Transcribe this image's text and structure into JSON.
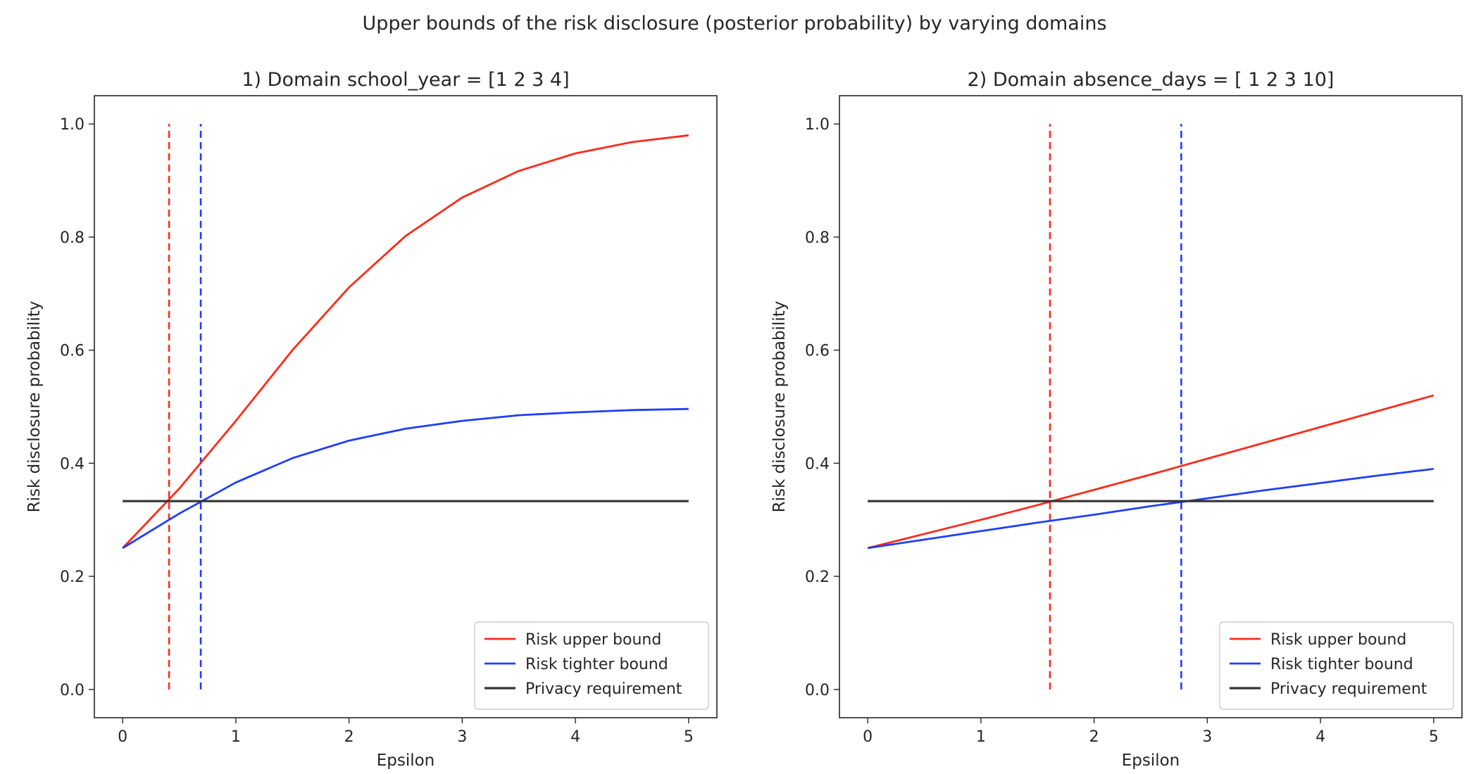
{
  "figure_title": "Upper bounds of the risk disclosure (posterior probability) by varying domains",
  "colors": {
    "upper": "#ff2a1a",
    "tighter": "#1f3dff",
    "requirement": "#333333"
  },
  "chart_data": [
    {
      "type": "line",
      "title": "1) Domain school_year = [1 2 3 4]",
      "xlabel": "Epsilon",
      "ylabel": "Risk disclosure probability",
      "xlim": [
        -0.25,
        5.25
      ],
      "ylim": [
        -0.05,
        1.05
      ],
      "xticks": [
        0,
        1,
        2,
        3,
        4,
        5
      ],
      "yticks": [
        0.0,
        0.2,
        0.4,
        0.6,
        0.8,
        1.0
      ],
      "grid": false,
      "legend_position": "lower-right",
      "series": [
        {
          "name": "Risk upper bound",
          "color": "#ff2a1a",
          "style": "solid",
          "x": [
            0,
            0.5,
            1,
            1.5,
            2,
            2.5,
            3,
            3.5,
            4,
            4.5,
            5
          ],
          "y": [
            0.25,
            0.355,
            0.475,
            0.6,
            0.711,
            0.802,
            0.87,
            0.917,
            0.948,
            0.968,
            0.98
          ]
        },
        {
          "name": "Risk tighter bound",
          "color": "#1f3dff",
          "style": "solid",
          "x": [
            0,
            0.5,
            1,
            1.5,
            2,
            2.5,
            3,
            3.5,
            4,
            4.5,
            5
          ],
          "y": [
            0.25,
            0.311,
            0.366,
            0.409,
            0.44,
            0.461,
            0.475,
            0.485,
            0.49,
            0.494,
            0.496
          ]
        },
        {
          "name": "Privacy requirement",
          "color": "#333333",
          "style": "solid",
          "x": [
            0,
            5
          ],
          "y": [
            0.333,
            0.333
          ]
        }
      ],
      "vlines": [
        {
          "x": 0.41,
          "color": "#ff2a1a",
          "style": "dashed",
          "ymin": 0,
          "ymax": 1
        },
        {
          "x": 0.69,
          "color": "#1f3dff",
          "style": "dashed",
          "ymin": 0,
          "ymax": 1
        }
      ]
    },
    {
      "type": "line",
      "title": "2) Domain absence_days = [ 1  2  3 10]",
      "xlabel": "Epsilon",
      "ylabel": "Risk disclosure probability",
      "xlim": [
        -0.25,
        5.25
      ],
      "ylim": [
        -0.05,
        1.05
      ],
      "xticks": [
        0,
        1,
        2,
        3,
        4,
        5
      ],
      "yticks": [
        0.0,
        0.2,
        0.4,
        0.6,
        0.8,
        1.0
      ],
      "grid": false,
      "legend_position": "lower-right",
      "series": [
        {
          "name": "Risk upper bound",
          "color": "#ff2a1a",
          "style": "solid",
          "x": [
            0,
            0.5,
            1,
            1.5,
            2,
            2.5,
            3,
            3.5,
            4,
            4.5,
            5
          ],
          "y": [
            0.25,
            0.275,
            0.3,
            0.326,
            0.353,
            0.38,
            0.408,
            0.436,
            0.464,
            0.492,
            0.52
          ]
        },
        {
          "name": "Risk tighter bound",
          "color": "#1f3dff",
          "style": "solid",
          "x": [
            0,
            0.5,
            1,
            1.5,
            2,
            2.5,
            3,
            3.5,
            4,
            4.5,
            5
          ],
          "y": [
            0.25,
            0.265,
            0.28,
            0.295,
            0.309,
            0.324,
            0.338,
            0.352,
            0.365,
            0.378,
            0.39
          ]
        },
        {
          "name": "Privacy requirement",
          "color": "#333333",
          "style": "solid",
          "x": [
            0,
            5
          ],
          "y": [
            0.333,
            0.333
          ]
        }
      ],
      "vlines": [
        {
          "x": 1.61,
          "color": "#ff2a1a",
          "style": "dashed",
          "ymin": 0,
          "ymax": 1
        },
        {
          "x": 2.77,
          "color": "#1f3dff",
          "style": "dashed",
          "ymin": 0,
          "ymax": 1
        }
      ]
    }
  ]
}
